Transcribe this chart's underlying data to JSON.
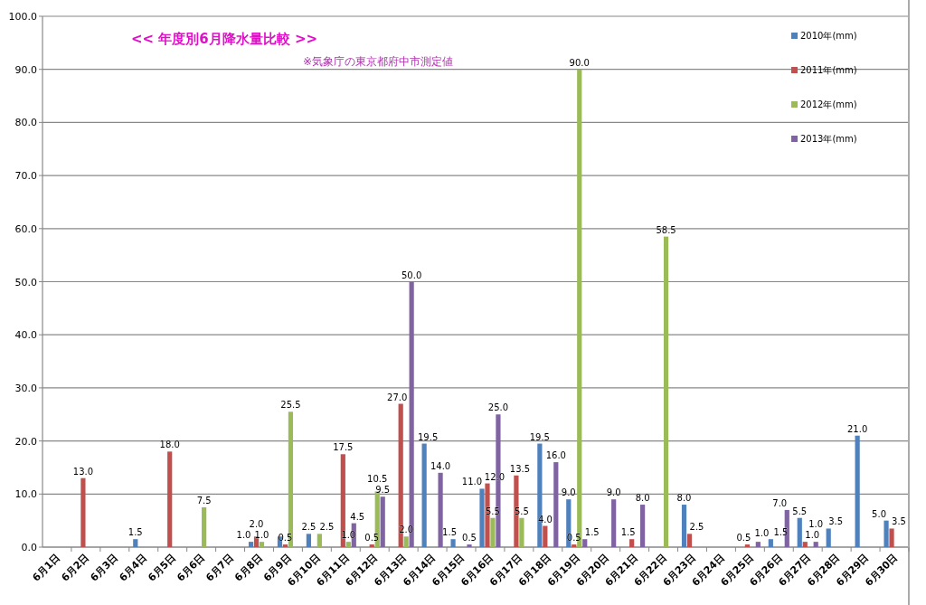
{
  "chart_data": {
    "type": "bar",
    "title": "<<  年度別6月降水量比較  >>",
    "subtitle": "※気象庁の東京都府中市測定値",
    "categories": [
      "6月1日",
      "6月2日",
      "6月3日",
      "6月4日",
      "6月5日",
      "6月6日",
      "6月7日",
      "6月8日",
      "6月9日",
      "6月10日",
      "6月11日",
      "6月12日",
      "6月13日",
      "6月14日",
      "6月15日",
      "6月16日",
      "6月17日",
      "6月18日",
      "6月19日",
      "6月20日",
      "6月21日",
      "6月22日",
      "6月23日",
      "6月24日",
      "6月25日",
      "6月26日",
      "6月27日",
      "6月28日",
      "6月29日",
      "6月30日"
    ],
    "series": [
      {
        "name": "2010年(mm)",
        "color": "#4f81bd",
        "values": [
          null,
          null,
          null,
          1.5,
          null,
          null,
          null,
          1.0,
          2.0,
          2.5,
          null,
          null,
          null,
          19.5,
          1.5,
          11.0,
          null,
          19.5,
          9.0,
          null,
          null,
          null,
          8.0,
          null,
          null,
          1.5,
          5.5,
          3.5,
          21.0,
          5.0
        ],
        "value_labels": [
          null,
          null,
          null,
          "1.5",
          null,
          null,
          null,
          "1.0",
          null,
          "2.5",
          null,
          null,
          null,
          "19.5",
          "1.5",
          "11.0",
          null,
          "19.5",
          "9.0",
          null,
          null,
          null,
          "8.0",
          null,
          null,
          "1.5",
          "5.5",
          "3.5",
          "21.0",
          "5.0"
        ]
      },
      {
        "name": "2011年(mm)",
        "color": "#c0504d",
        "values": [
          null,
          13.0,
          null,
          null,
          18.0,
          null,
          null,
          2.0,
          0.5,
          null,
          17.5,
          0.5,
          27.0,
          null,
          null,
          12.0,
          13.5,
          4.0,
          0.5,
          null,
          1.5,
          null,
          2.5,
          null,
          0.5,
          null,
          1.0,
          null,
          null,
          3.5
        ],
        "value_labels": [
          null,
          "13.0",
          null,
          null,
          "18.0",
          null,
          null,
          "2.0",
          "0.5",
          null,
          "17.5",
          "0.5",
          "27.0",
          null,
          null,
          "12.0",
          "13.5",
          "4.0",
          "0.5",
          null,
          "1.5",
          null,
          "2.5",
          null,
          "0.5",
          null,
          "1.0",
          null,
          null,
          "3.5"
        ]
      },
      {
        "name": "2012年(mm)",
        "color": "#9bbb59",
        "values": [
          null,
          null,
          null,
          null,
          null,
          7.5,
          null,
          1.0,
          25.5,
          2.5,
          1.0,
          10.5,
          2.0,
          null,
          null,
          5.5,
          5.5,
          null,
          90.0,
          null,
          null,
          58.5,
          null,
          null,
          null,
          null,
          null,
          null,
          null,
          null
        ],
        "value_labels": [
          null,
          null,
          null,
          null,
          null,
          "7.5",
          null,
          "1.0",
          "25.5",
          "2.5",
          "1.0",
          "10.5",
          "2.0",
          null,
          null,
          "5.5",
          "5.5",
          null,
          "90.0",
          null,
          null,
          "58.5",
          null,
          null,
          null,
          null,
          null,
          null,
          null,
          null
        ]
      },
      {
        "name": "2013年(mm)",
        "color": "#8064a2",
        "values": [
          null,
          null,
          null,
          null,
          null,
          null,
          null,
          null,
          null,
          null,
          4.5,
          9.5,
          50.0,
          14.0,
          0.5,
          25.0,
          null,
          16.0,
          1.5,
          9.0,
          8.0,
          null,
          null,
          null,
          1.0,
          7.0,
          1.0,
          null,
          null,
          null
        ],
        "value_labels": [
          null,
          null,
          null,
          null,
          null,
          null,
          null,
          null,
          null,
          null,
          "4.5",
          "9.5",
          "50.0",
          "14.0",
          "0.5",
          "25.0",
          null,
          "16.0",
          "1.5",
          "9.0",
          "8.0",
          null,
          null,
          null,
          "1.0",
          "7.0",
          "1.0",
          null,
          null,
          null
        ]
      }
    ],
    "ylim": [
      0,
      100
    ],
    "yticks": [
      {
        "value": 0,
        "label": "0.0"
      },
      {
        "value": 10,
        "label": "10.0"
      },
      {
        "value": 20,
        "label": "20.0"
      },
      {
        "value": 30,
        "label": "30.0"
      },
      {
        "value": 40,
        "label": "40.0"
      },
      {
        "value": 50,
        "label": "50.0"
      },
      {
        "value": 60,
        "label": "60.0"
      },
      {
        "value": 70,
        "label": "70.0"
      },
      {
        "value": 80,
        "label": "80.0"
      },
      {
        "value": 90,
        "label": "90.0"
      },
      {
        "value": 100,
        "label": "100.0"
      }
    ],
    "grid": "y",
    "legend": "top right"
  }
}
